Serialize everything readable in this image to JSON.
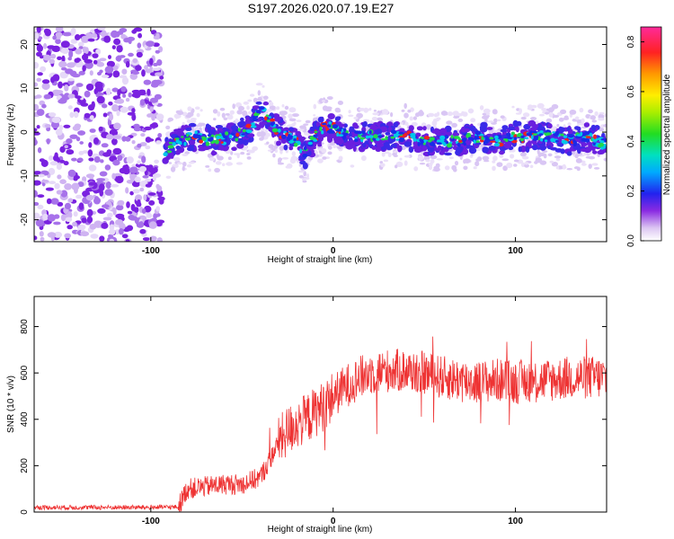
{
  "title": "S197.2026.020.07.19.E27",
  "chart_data": [
    {
      "type": "heatmap",
      "xlabel": "Height of straight line (km)",
      "ylabel": "Frequency (Hz)",
      "xlim": [
        -164,
        150
      ],
      "ylim": [
        -25,
        24
      ],
      "x_ticks": [
        "-100",
        "0",
        "100"
      ],
      "x_tick_values": [
        -100,
        0,
        100
      ],
      "y_ticks": [
        "-20",
        "-10",
        "0",
        "10",
        "20"
      ],
      "y_tick_values": [
        -20,
        -10,
        0,
        10,
        20
      ],
      "colorbar": {
        "label": "Normalized spectral amplitude",
        "range": [
          0.0,
          0.86
        ],
        "ticks": [
          "0.0",
          "0.2",
          "0.4",
          "0.6",
          "0.8"
        ],
        "tick_values": [
          0.0,
          0.2,
          0.4,
          0.6,
          0.8
        ]
      },
      "noise_region_x": [
        -164,
        -94
      ],
      "ridge": {
        "x": [
          -92,
          -85,
          -75,
          -65,
          -55,
          -45,
          -40,
          -35,
          -30,
          -25,
          -20,
          -15,
          -10,
          -5,
          0,
          5,
          10,
          20,
          30,
          40,
          50,
          60,
          70,
          80,
          90,
          100,
          110,
          120,
          130,
          140,
          150
        ],
        "y": [
          -4,
          -2,
          -1,
          -2,
          -1,
          1,
          5,
          3,
          0,
          -1,
          -2,
          -5,
          -1,
          1,
          1,
          0,
          -1,
          -1,
          -1,
          -1,
          -2,
          -2,
          -2,
          -1,
          -2,
          -1,
          -1,
          -1,
          -2,
          -1,
          -3
        ]
      }
    },
    {
      "type": "line",
      "xlabel": "Height of straight line (km)",
      "ylabel": "SNR (10 * v/v)",
      "xlim": [
        -164,
        150
      ],
      "ylim": [
        0,
        930
      ],
      "x_ticks": [
        "-100",
        "0",
        "100"
      ],
      "x_tick_values": [
        -100,
        0,
        100
      ],
      "y_ticks": [
        "0",
        "200",
        "400",
        "600",
        "800"
      ],
      "y_tick_values": [
        0,
        200,
        400,
        600,
        800
      ],
      "color": "#ee3333",
      "trend": {
        "x": [
          -164,
          -100,
          -85,
          -80,
          -70,
          -60,
          -50,
          -40,
          -35,
          -30,
          -25,
          -20,
          -15,
          -10,
          -5,
          0,
          10,
          20,
          30,
          40,
          50,
          60,
          70,
          80,
          90,
          100,
          110,
          120,
          130,
          140,
          150
        ],
        "y": [
          20,
          20,
          22,
          100,
          110,
          120,
          120,
          150,
          220,
          300,
          350,
          380,
          400,
          430,
          460,
          500,
          560,
          600,
          610,
          610,
          600,
          580,
          570,
          560,
          570,
          560,
          570,
          570,
          580,
          580,
          580
        ]
      }
    }
  ]
}
